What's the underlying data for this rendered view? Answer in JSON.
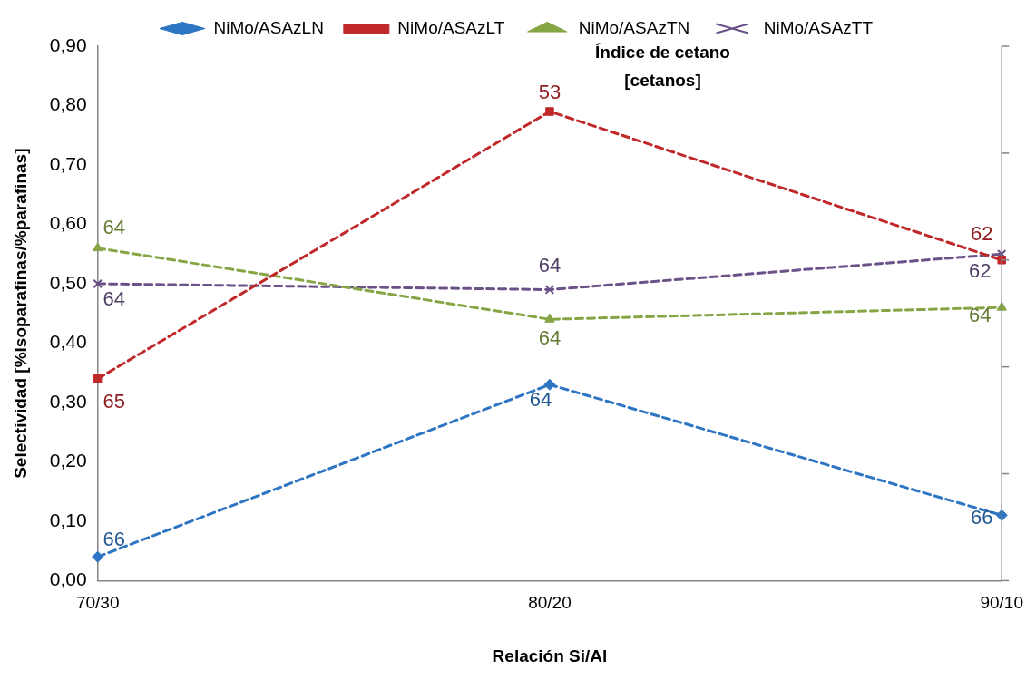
{
  "chart_data": {
    "type": "line",
    "xlabel": "Relación Si/Al",
    "ylabel": "Selectividad [%Isoparafinas/%parafinas]",
    "y2label": "Índice de cetano\n[cetanos]",
    "categories": [
      "70/30",
      "80/20",
      "90/10"
    ],
    "series": [
      {
        "name": "NiMo/ASAzLN",
        "color": "#2e75c4",
        "values": [
          0.04,
          0.33,
          0.11
        ]
      },
      {
        "name": "NiMo/ASAzLT",
        "color": "#c0282a",
        "values": [
          0.34,
          0.79,
          0.54
        ]
      },
      {
        "name": "NiMo/ASAzTN",
        "color": "#86a545",
        "values": [
          0.56,
          0.44,
          0.46
        ]
      },
      {
        "name": "NiMo/ASAzTT",
        "color": "#6a5288",
        "values": [
          0.5,
          0.49,
          0.55
        ]
      }
    ],
    "ylim": [
      0,
      0.9
    ],
    "yticks": [
      {
        "value": 0,
        "label": "0,00"
      },
      {
        "value": 0.1,
        "label": "0,10"
      },
      {
        "value": 0.2,
        "label": "0,20"
      },
      {
        "value": 0.3,
        "label": "0,30"
      },
      {
        "value": 0.4,
        "label": "0,40"
      },
      {
        "value": 0.5,
        "label": "0,50"
      },
      {
        "value": 0.6,
        "label": "0,60"
      },
      {
        "value": 0.7,
        "label": "0,70"
      },
      {
        "value": 0.8,
        "label": "0,80"
      },
      {
        "value": 0.9,
        "label": "0,90"
      }
    ],
    "annotations": [
      {
        "text": "66",
        "x": "70/30",
        "y": 0.04
      },
      {
        "text": "64",
        "x": "80/20",
        "y": 0.33
      },
      {
        "text": "66",
        "x": "90/10",
        "y": 0.11
      },
      {
        "text": "65",
        "x": "70/30",
        "y": 0.34
      },
      {
        "text": "53",
        "x": "80/20",
        "y": 0.79
      },
      {
        "text": "62",
        "x": "90/10",
        "y": 0.54
      },
      {
        "text": "64",
        "x": "70/30",
        "y": 0.56
      },
      {
        "text": "64",
        "x": "80/20",
        "y": 0.44
      },
      {
        "text": "64",
        "x": "90/10",
        "y": 0.46
      },
      {
        "text": "64",
        "x": "70/30",
        "y": 0.5
      },
      {
        "text": "64",
        "x": "80/20",
        "y": 0.49
      },
      {
        "text": "62",
        "x": "90/10",
        "y": 0.55
      }
    ],
    "grid": false,
    "legend": "top",
    "marker": [
      "diamond",
      "square",
      "triangle",
      "cross"
    ],
    "line_style": "dashed"
  }
}
